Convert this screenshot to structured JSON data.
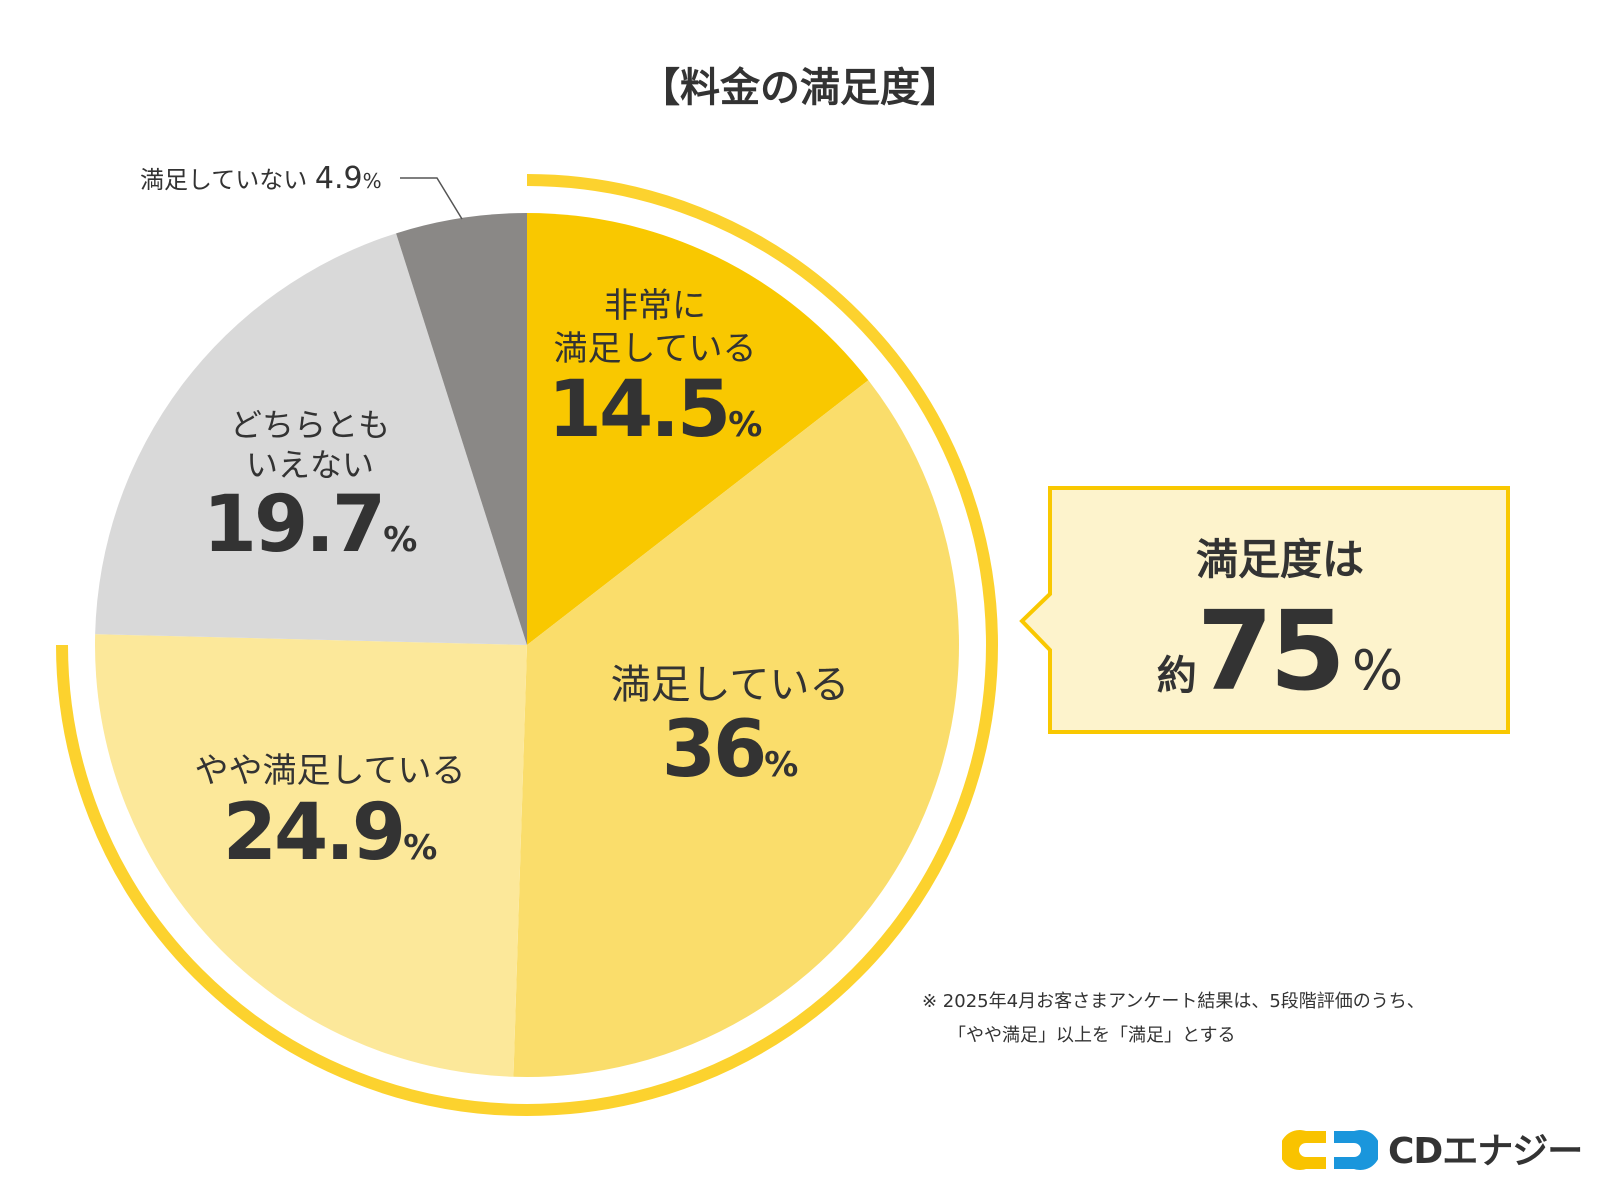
{
  "chart_data": {
    "type": "pie",
    "title": "【料金の満足度】",
    "start": "top",
    "direction": "clockwise",
    "slices": [
      {
        "label": "非常に満足している",
        "label_lines": [
          "非常に",
          "満足している"
        ],
        "value": 14.5,
        "value_text": "14.5",
        "color": "#F9C800"
      },
      {
        "label": "満足している",
        "label_lines": [
          "満足している"
        ],
        "value": 36,
        "value_text": "36",
        "color": "#FADD6B"
      },
      {
        "label": "やや満足している",
        "label_lines": [
          "やや満足している"
        ],
        "value": 24.9,
        "value_text": "24.9",
        "color": "#FCE89A"
      },
      {
        "label": "どちらともいえない",
        "label_lines": [
          "どちらとも",
          "いえない"
        ],
        "value": 19.7,
        "value_text": "19.7",
        "color": "#D9D9D9"
      },
      {
        "label": "満足していない",
        "label_lines": [
          "満足していない"
        ],
        "value": 4.9,
        "value_text": "4.9",
        "color": "#8A8886"
      }
    ],
    "percent_sign": "%",
    "highlight_ring": {
      "covers_percent": 75,
      "color": "#FCD22E"
    }
  },
  "callout": {
    "heading": "満足度は",
    "prefix": "約",
    "value": "75",
    "unit": "%",
    "border_color": "#F9C800",
    "fill_color": "#FDF3CC"
  },
  "footnote": {
    "line1": "※ 2025年4月お客さまアンケート結果は、5段階評価のうち、",
    "line2": "「やや満足」以上を「満足」とする"
  },
  "logo": {
    "text": "CDエナジー",
    "colors": [
      "#F9C300",
      "#1A96DC"
    ]
  }
}
